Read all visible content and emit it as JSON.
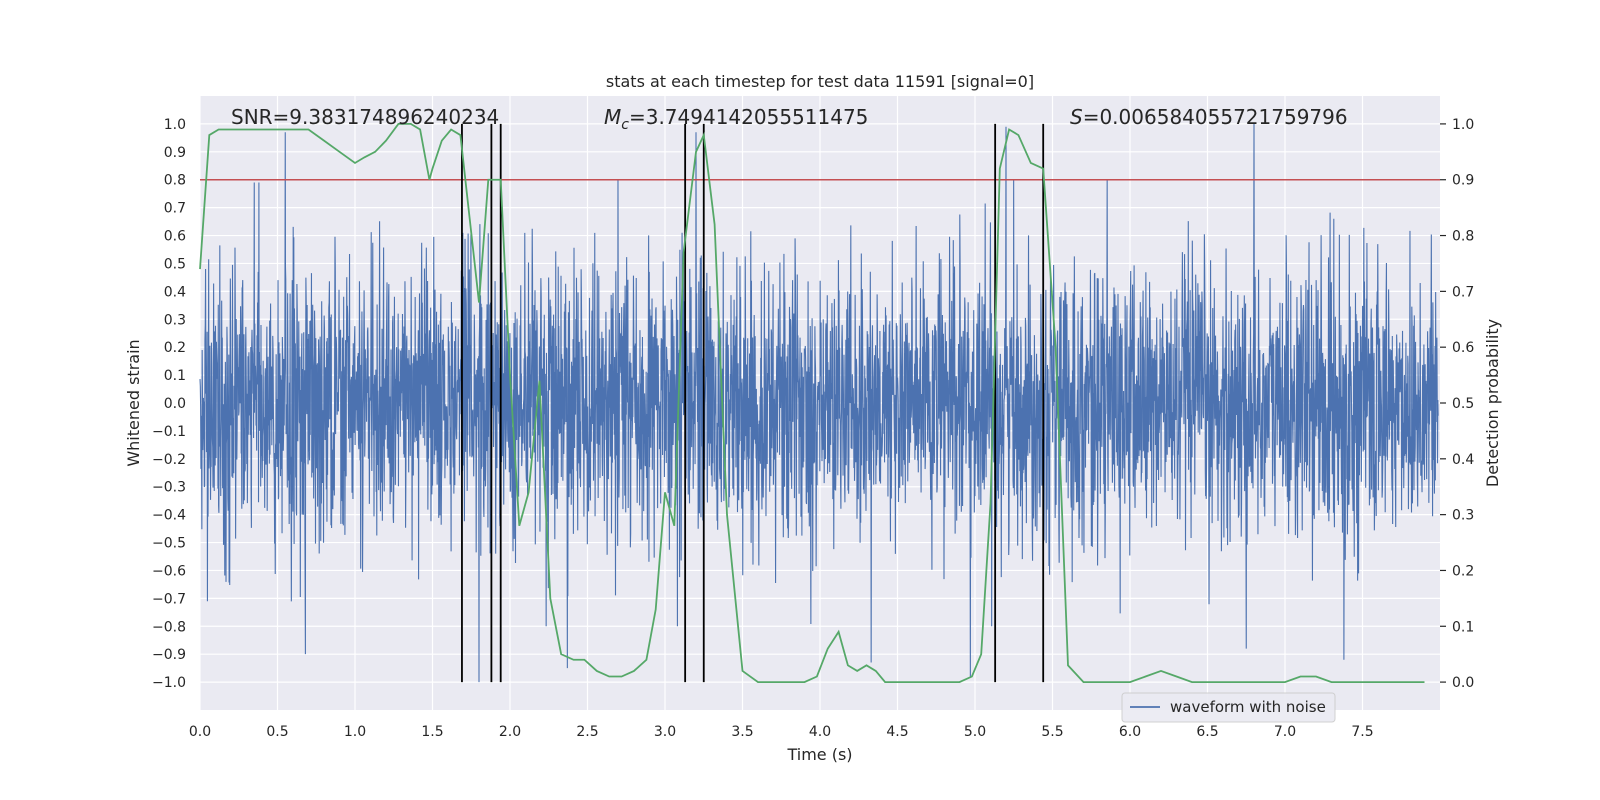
{
  "chart_data": {
    "type": "line",
    "title": "stats at each timestep for test data 11591 [signal=0]",
    "xlabel": "Time (s)",
    "ylabel_left": "Whitened strain",
    "ylabel_right": "Detection probability",
    "xlim": [
      0,
      8
    ],
    "ylim_left": [
      -1.1,
      1.1
    ],
    "ylim_right": [
      -0.05,
      1.05
    ],
    "x_ticks": [
      0.0,
      0.5,
      1.0,
      1.5,
      2.0,
      2.5,
      3.0,
      3.5,
      4.0,
      4.5,
      5.0,
      5.5,
      6.0,
      6.5,
      7.0,
      7.5
    ],
    "x_tick_labels": [
      "0.0",
      "0.5",
      "1.0",
      "1.5",
      "2.0",
      "2.5",
      "3.0",
      "3.5",
      "4.0",
      "4.5",
      "5.0",
      "5.5",
      "6.0",
      "6.5",
      "7.0",
      "7.5"
    ],
    "y_left_ticks": [
      -1.0,
      -0.9,
      -0.8,
      -0.7,
      -0.6,
      -0.5,
      -0.4,
      -0.3,
      -0.2,
      -0.1,
      0.0,
      0.1,
      0.2,
      0.3,
      0.4,
      0.5,
      0.6,
      0.7,
      0.8,
      0.9,
      1.0
    ],
    "y_left_tick_labels": [
      "−1.0",
      "−0.9",
      "−0.8",
      "−0.7",
      "−0.6",
      "−0.5",
      "−0.4",
      "−0.3",
      "−0.2",
      "−0.1",
      "0.0",
      "0.1",
      "0.2",
      "0.3",
      "0.4",
      "0.5",
      "0.6",
      "0.7",
      "0.8",
      "0.9",
      "1.0"
    ],
    "y_right_ticks": [
      0.0,
      0.1,
      0.2,
      0.3,
      0.4,
      0.5,
      0.6,
      0.7,
      0.8,
      0.9,
      1.0
    ],
    "y_right_tick_labels": [
      "0.0",
      "0.1",
      "0.2",
      "0.3",
      "0.4",
      "0.5",
      "0.6",
      "0.7",
      "0.8",
      "0.9",
      "1.0"
    ],
    "annotations": {
      "snr": "SNR=9.383174896240234",
      "mc_prefix": "M",
      "mc_sub": "c",
      "mc_value": "=3.7494142055511475",
      "s_prefix": "S",
      "s_value": "=0.006584055721759796"
    },
    "legend": {
      "label": "waveform with noise",
      "position": "lower-right"
    },
    "series": [
      {
        "name": "waveform with noise",
        "axis": "left",
        "color": "#4c72b0",
        "style": "dense noise, approx. |strain| up to 0.6, occasional spikes to ±1.0",
        "spikes": [
          {
            "x": 0.55,
            "y": 0.97
          },
          {
            "x": 0.35,
            "y": 0.79
          },
          {
            "x": 0.38,
            "y": 0.79
          },
          {
            "x": 0.68,
            "y": -0.9
          },
          {
            "x": 1.8,
            "y": -1.0
          },
          {
            "x": 2.37,
            "y": -0.95
          },
          {
            "x": 3.2,
            "y": 0.97
          },
          {
            "x": 4.33,
            "y": 0.85
          },
          {
            "x": 4.33,
            "y": -0.93
          },
          {
            "x": 4.97,
            "y": -0.98
          },
          {
            "x": 5.2,
            "y": 0.99
          },
          {
            "x": 6.8,
            "y": 1.0
          },
          {
            "x": 7.38,
            "y": -0.92
          },
          {
            "x": 6.75,
            "y": -0.88
          }
        ]
      },
      {
        "name": "detection probability",
        "axis": "right",
        "color": "#55a868",
        "x": [
          0.0,
          0.06,
          0.12,
          0.2,
          0.3,
          0.4,
          0.5,
          0.6,
          0.7,
          0.8,
          0.9,
          1.0,
          1.06,
          1.13,
          1.2,
          1.28,
          1.36,
          1.42,
          1.48,
          1.5,
          1.56,
          1.62,
          1.68,
          1.74,
          1.8,
          1.86,
          1.94,
          2.0,
          2.06,
          2.12,
          2.19,
          2.26,
          2.33,
          2.41,
          2.48,
          2.56,
          2.64,
          2.72,
          2.8,
          2.88,
          2.94,
          3.0,
          3.06,
          3.12,
          3.2,
          3.25,
          3.32,
          3.4,
          3.5,
          3.6,
          3.7,
          3.8,
          3.9,
          3.98,
          4.05,
          4.12,
          4.18,
          4.24,
          4.3,
          4.36,
          4.42,
          4.5,
          4.6,
          4.7,
          4.8,
          4.9,
          4.98,
          5.04,
          5.1,
          5.16,
          5.22,
          5.28,
          5.36,
          5.44,
          5.52,
          5.6,
          5.7,
          5.8,
          5.9,
          6.0,
          6.1,
          6.2,
          6.3,
          6.4,
          6.5,
          6.6,
          6.7,
          6.8,
          6.9,
          7.0,
          7.1,
          7.2,
          7.3,
          7.4,
          7.5,
          7.6,
          7.7,
          7.8,
          7.9
        ],
        "y": [
          0.74,
          0.98,
          0.99,
          0.99,
          0.99,
          0.99,
          0.99,
          0.99,
          0.99,
          0.97,
          0.95,
          0.93,
          0.94,
          0.95,
          0.97,
          1.0,
          1.0,
          0.99,
          0.9,
          0.92,
          0.97,
          0.99,
          0.98,
          0.83,
          0.68,
          0.9,
          0.9,
          0.55,
          0.28,
          0.34,
          0.54,
          0.15,
          0.05,
          0.04,
          0.04,
          0.02,
          0.01,
          0.01,
          0.02,
          0.04,
          0.13,
          0.34,
          0.28,
          0.77,
          0.95,
          0.98,
          0.82,
          0.3,
          0.02,
          0.0,
          0.0,
          0.0,
          0.0,
          0.01,
          0.06,
          0.09,
          0.03,
          0.02,
          0.03,
          0.02,
          0.0,
          0.0,
          0.0,
          0.0,
          0.0,
          0.0,
          0.01,
          0.05,
          0.32,
          0.92,
          0.99,
          0.98,
          0.93,
          0.92,
          0.6,
          0.03,
          0.0,
          0.0,
          0.0,
          0.0,
          0.01,
          0.02,
          0.01,
          0.0,
          0.0,
          0.0,
          0.0,
          0.0,
          0.0,
          0.0,
          0.01,
          0.01,
          0.0,
          0.0,
          0.0,
          0.0,
          0.0,
          0.0,
          0.0
        ]
      }
    ],
    "threshold": {
      "axis": "right",
      "value": 0.9,
      "color": "#c44e52"
    },
    "vertical_markers": {
      "color": "#000000",
      "x": [
        1.69,
        1.88,
        1.94,
        3.13,
        3.25,
        5.13,
        5.44
      ]
    }
  }
}
